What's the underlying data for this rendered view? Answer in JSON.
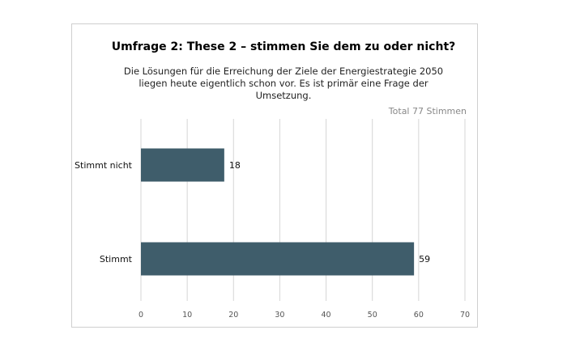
{
  "chart_data": {
    "type": "bar",
    "orientation": "horizontal",
    "title": "Umfrage 2: These 2 – stimmen Sie dem zu oder nicht?",
    "subtitle": "Die Lösungen für die Erreichung der Ziele der Energiestrategie 2050 liegen heute eigentlich schon vor. Es ist primär eine Frage der Umsetzung.",
    "total_label": "Total 77 Stimmen",
    "categories": [
      "Stimmt nicht",
      "Stimmt"
    ],
    "values": [
      18,
      59
    ],
    "xlim": [
      0,
      70
    ],
    "ticks": [
      0,
      10,
      20,
      30,
      40,
      50,
      60,
      70
    ],
    "grid": true,
    "bar_color": "#3f5d6b",
    "grid_color": "#d6d6d6"
  }
}
